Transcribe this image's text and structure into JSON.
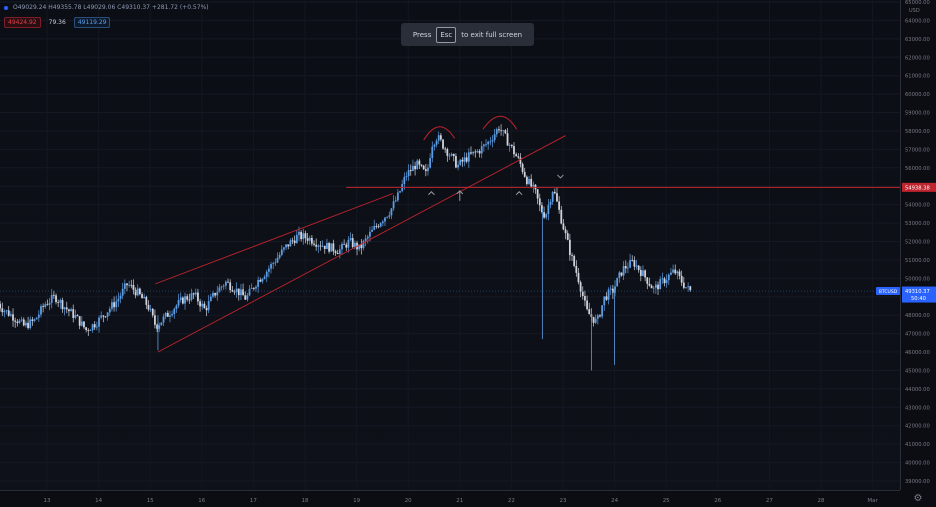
{
  "legend": {
    "values": "O49029.24  H49355.78  L49029.06  C49310.37  +281.72 (+0.57%)"
  },
  "indicators": {
    "red_badge": "49424.92",
    "plain_value": "79.36",
    "blue_badge": "49119.29"
  },
  "toast": {
    "press": "Press",
    "key": "Esc",
    "tail": "to exit full screen"
  },
  "price_axis": {
    "currency": "USD",
    "ticks": [
      "65000.00",
      "64000.00",
      "63000.00",
      "62000.00",
      "61000.00",
      "60000.00",
      "59000.00",
      "58000.00",
      "57000.00",
      "56000.00",
      "55000.00",
      "54000.00",
      "53000.00",
      "52000.00",
      "51000.00",
      "50000.00",
      "49000.00",
      "48000.00",
      "47000.00",
      "46000.00",
      "45000.00",
      "44000.00",
      "43000.00",
      "42000.00",
      "41000.00",
      "40000.00",
      "39000.00"
    ],
    "level_label": "54938.38",
    "current_label": "49310.37",
    "countdown": "50:40",
    "symbol_tag": "BTCUSD"
  },
  "time_axis": {
    "ticks": [
      "13",
      "14",
      "15",
      "16",
      "17",
      "18",
      "19",
      "20",
      "21",
      "22",
      "23",
      "24",
      "25",
      "26",
      "27",
      "28",
      "Mar"
    ]
  },
  "colors": {
    "up": "#5d9de4",
    "down": "#d1d4dc",
    "trend": "#c0242e",
    "level": "#c0242e",
    "arrow": "#9598a1"
  },
  "chart_data": {
    "type": "candlestick",
    "symbol": "BTCUSD",
    "ylim": [
      38500,
      65200
    ],
    "level": 54938.38,
    "last": 49310.37,
    "path": [
      [
        12.0,
        48900
      ],
      [
        12.2,
        48300
      ],
      [
        12.4,
        47900
      ],
      [
        12.6,
        47400
      ],
      [
        12.8,
        47700
      ],
      [
        13.0,
        48600
      ],
      [
        13.2,
        49000
      ],
      [
        13.4,
        48400
      ],
      [
        13.6,
        47900
      ],
      [
        13.8,
        47200
      ],
      [
        14.0,
        47600
      ],
      [
        14.2,
        48200
      ],
      [
        14.4,
        48800
      ],
      [
        14.6,
        49700
      ],
      [
        14.8,
        49200
      ],
      [
        15.0,
        48500
      ],
      [
        15.15,
        47400
      ],
      [
        15.3,
        47800
      ],
      [
        15.5,
        48400
      ],
      [
        15.7,
        48900
      ],
      [
        15.9,
        49100
      ],
      [
        16.1,
        48300
      ],
      [
        16.3,
        49200
      ],
      [
        16.5,
        49800
      ],
      [
        16.7,
        49400
      ],
      [
        16.9,
        48900
      ],
      [
        17.1,
        49800
      ],
      [
        17.3,
        50400
      ],
      [
        17.5,
        51100
      ],
      [
        17.7,
        51800
      ],
      [
        17.9,
        52300
      ],
      [
        18.1,
        52200
      ],
      [
        18.3,
        51900
      ],
      [
        18.5,
        51700
      ],
      [
        18.7,
        51500
      ],
      [
        18.9,
        52000
      ],
      [
        19.1,
        51600
      ],
      [
        19.3,
        52400
      ],
      [
        19.5,
        53100
      ],
      [
        19.7,
        53700
      ],
      [
        19.85,
        54500
      ],
      [
        20.0,
        55600
      ],
      [
        20.2,
        56200
      ],
      [
        20.4,
        55600
      ],
      [
        20.5,
        57300
      ],
      [
        20.6,
        57700
      ],
      [
        20.8,
        56900
      ],
      [
        21.0,
        56100
      ],
      [
        21.2,
        56600
      ],
      [
        21.4,
        56900
      ],
      [
        21.6,
        57400
      ],
      [
        21.8,
        58200
      ],
      [
        22.0,
        57300
      ],
      [
        22.2,
        56300
      ],
      [
        22.35,
        55300
      ],
      [
        22.5,
        54700
      ],
      [
        22.6,
        53800
      ],
      [
        22.7,
        53400
      ],
      [
        22.85,
        54900
      ],
      [
        23.0,
        53300
      ],
      [
        23.2,
        51200
      ],
      [
        23.35,
        49900
      ],
      [
        23.5,
        48200
      ],
      [
        23.7,
        47600
      ],
      [
        23.85,
        49000
      ],
      [
        24.0,
        49300
      ],
      [
        24.2,
        50500
      ],
      [
        24.4,
        50900
      ],
      [
        24.6,
        50200
      ],
      [
        24.8,
        49400
      ],
      [
        25.0,
        49900
      ],
      [
        25.2,
        50400
      ],
      [
        25.4,
        49600
      ],
      [
        25.5,
        49310
      ]
    ]
  }
}
